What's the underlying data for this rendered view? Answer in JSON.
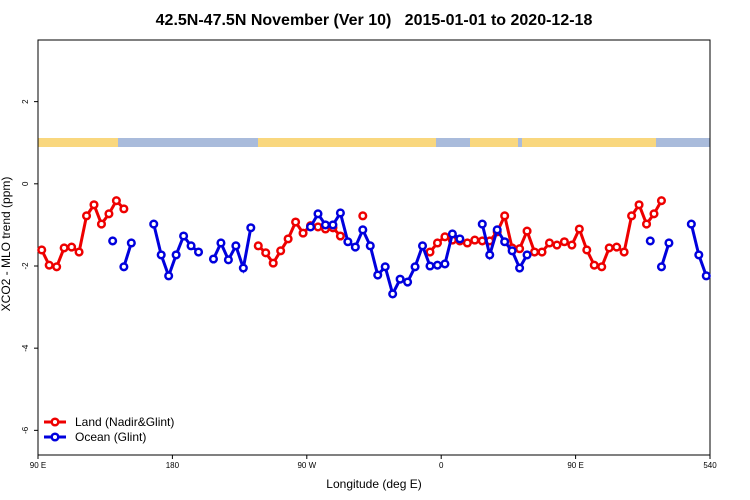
{
  "chart_data": {
    "type": "line",
    "title": "42.5N-47.5N November (Ver 10)   2015-01-01 to 2020-12-18",
    "x_label": "Longitude (deg E)",
    "y_label": "XCO2 - MLO trend (ppm)",
    "xlim": [
      90,
      540
    ],
    "ylim": [
      -6.6,
      3.5
    ],
    "xticks": [
      {
        "value": 90,
        "label": "90 E"
      },
      180,
      {
        "value": 270,
        "label": "90 W"
      },
      {
        "value": 360,
        "label": "0"
      },
      {
        "value": 450,
        "label": "90 E"
      },
      540
    ],
    "yticks": [
      -6,
      -4,
      -2,
      0,
      2
    ],
    "legend": "bottom-left",
    "series": [
      {
        "name": "Land (Nadir&Glint)",
        "color": "#ee0000",
        "x": [
          92.5,
          97.5,
          102.5,
          107.5,
          112.5,
          117.5,
          122.5,
          127.5,
          132.5,
          137.5,
          142.5,
          147.5,
          152.5,
          237.5,
          242.5,
          247.5,
          252.5,
          257.5,
          262.5,
          267.5,
          272.5,
          277.5,
          282.5,
          287.5,
          292.5,
          297.5,
          307.5,
          312.5,
          352.5,
          357.5,
          362.5,
          367.5,
          372.5,
          377.5,
          382.5,
          387.5,
          392.5,
          397.5,
          402.5,
          407.5,
          412.5,
          417.5,
          422.5,
          427.5,
          432.5,
          437.5,
          442.5,
          447.5,
          452.5,
          457.5,
          462.5,
          467.5,
          472.5,
          477.5,
          482.5,
          487.5,
          492.5,
          497.5,
          502.5,
          507.5
        ],
        "values": [
          -1.61,
          -1.98,
          -2.02,
          -1.56,
          -1.54,
          -1.66,
          -0.78,
          -0.51,
          -0.98,
          -0.73,
          -0.41,
          -0.61,
          null,
          -1.51,
          -1.68,
          -1.93,
          -1.63,
          -1.34,
          -0.93,
          -1.2,
          -1.02,
          -1.05,
          -1.1,
          -1.07,
          -1.27,
          null,
          -0.78,
          null,
          -1.66,
          -1.44,
          -1.29,
          -1.37,
          -1.39,
          -1.44,
          -1.37,
          -1.39,
          -1.39,
          -1.17,
          -0.78,
          -1.56,
          -1.58,
          -1.15,
          -1.66,
          -1.66,
          -1.44,
          -1.49,
          -1.41,
          -1.49,
          -1.1,
          -1.61,
          -1.98,
          -2.02,
          -1.56,
          -1.54,
          -1.66,
          -0.78,
          -0.51,
          -0.98,
          -0.73,
          -0.41
        ]
      },
      {
        "name": "Ocean (Glint)",
        "color": "#0000dd",
        "x": [
          140,
          145,
          147.5,
          152.5,
          160,
          167.5,
          172.5,
          177.5,
          182.5,
          187.5,
          192.5,
          197.5,
          202.5,
          207.5,
          212.5,
          217.5,
          222.5,
          227.5,
          232.5,
          252.5,
          272.5,
          277.5,
          282.5,
          287.5,
          292.5,
          297.5,
          302.5,
          307.5,
          312.5,
          317.5,
          322.5,
          327.5,
          332.5,
          337.5,
          342.5,
          347.5,
          352.5,
          357.5,
          362.5,
          367.5,
          372.5,
          380,
          387.5,
          392.5,
          397.5,
          402.5,
          407.5,
          412.5,
          417.5,
          460,
          500,
          505,
          507.5,
          512.5,
          520,
          527.5,
          532.5,
          537.5
        ],
        "values": [
          -1.39,
          null,
          -2.02,
          -1.44,
          null,
          -0.98,
          -1.73,
          -2.24,
          -1.73,
          -1.27,
          -1.51,
          -1.66,
          null,
          -1.83,
          -1.44,
          -1.85,
          -1.51,
          -2.05,
          -1.07,
          null,
          -1.05,
          -0.73,
          -1.0,
          -1.0,
          -0.71,
          -1.41,
          -1.54,
          -1.12,
          -1.51,
          -2.22,
          -2.02,
          -2.68,
          -2.32,
          -2.39,
          -2.02,
          -1.51,
          -2.0,
          -1.98,
          -1.95,
          -1.22,
          -1.34,
          null,
          -0.98,
          -1.73,
          -1.12,
          -1.41,
          -1.63,
          -2.05,
          -1.73,
          null,
          -1.39,
          null,
          -2.02,
          -1.44,
          null,
          -0.98,
          -1.73,
          -2.24
        ]
      }
    ]
  }
}
